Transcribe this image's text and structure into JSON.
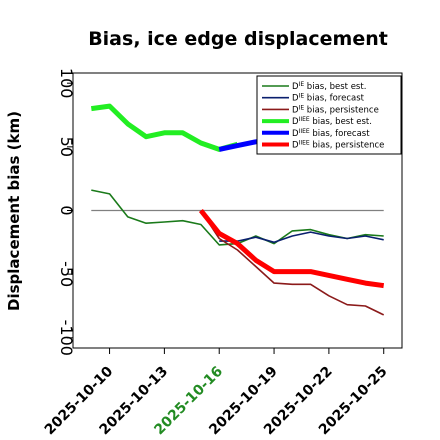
{
  "chart_data": {
    "type": "line",
    "title": "Bias, ice edge displacement",
    "xlabel": "",
    "ylabel": "Displacement bias (km)",
    "x_start": "2025-10-09",
    "x_end": "2025-10-25",
    "xlim": [
      "2025-10-08",
      "2025-10-26"
    ],
    "ylim": [
      -108,
      108
    ],
    "y_ticks": [
      100,
      50,
      0,
      -50,
      -100
    ],
    "y_tick_labels": [
      "100",
      "50",
      "0",
      "-50",
      "-100"
    ],
    "x_ticks": [
      "2025-10-10",
      "2025-10-13",
      "2025-10-16",
      "2025-10-19",
      "2025-10-22",
      "2025-10-25"
    ],
    "x_tick_colors": [
      "#000000",
      "#000000",
      "#228b22",
      "#000000",
      "#000000",
      "#000000"
    ],
    "reference_line": 0,
    "reference_color": "#808080",
    "grid": false,
    "legend_position": "top-right",
    "series": [
      {
        "name": "D bias, best est.",
        "legend_super": "IE",
        "legend_rest": " bias, best est.",
        "color": "#1a7a1a",
        "width": 1.6,
        "x": [
          "2025-10-09",
          "2025-10-10",
          "2025-10-11",
          "2025-10-12",
          "2025-10-13",
          "2025-10-14",
          "2025-10-15",
          "2025-10-16",
          "2025-10-17",
          "2025-10-18",
          "2025-10-19",
          "2025-10-20",
          "2025-10-21",
          "2025-10-22",
          "2025-10-23",
          "2025-10-24",
          "2025-10-25"
        ],
        "y": [
          16,
          13,
          -5,
          -10,
          -9,
          -8,
          -11,
          -27,
          -26,
          -20,
          -26,
          -16,
          -15,
          -19,
          -22,
          -19,
          -20
        ]
      },
      {
        "name": "D bias, forecast",
        "legend_super": "IE",
        "legend_rest": " bias, forecast",
        "color": "#0a1f6e",
        "width": 1.6,
        "x": [
          "2025-10-16",
          "2025-10-17",
          "2025-10-18",
          "2025-10-19",
          "2025-10-20",
          "2025-10-21",
          "2025-10-22",
          "2025-10-23",
          "2025-10-24",
          "2025-10-25"
        ],
        "y": [
          -24,
          -24,
          -21,
          -25,
          -20,
          -17,
          -20,
          -22,
          -20,
          -23
        ]
      },
      {
        "name": "D bias, persistence",
        "legend_super": "IE",
        "legend_rest": " bias, persistence",
        "color": "#8b1a1a",
        "width": 1.6,
        "x": [
          "2025-10-15",
          "2025-10-16",
          "2025-10-17",
          "2025-10-18",
          "2025-10-19",
          "2025-10-20",
          "2025-10-21",
          "2025-10-22",
          "2025-10-23",
          "2025-10-24",
          "2025-10-25"
        ],
        "y": [
          0,
          -22,
          -31,
          -44,
          -57,
          -58,
          -58,
          -67,
          -74,
          -75,
          -82
        ]
      },
      {
        "name": "D bias, best est.",
        "legend_super": "IIEE",
        "legend_rest": " bias, best est.",
        "color": "#22ee22",
        "width": 5,
        "x": [
          "2025-10-09",
          "2025-10-10",
          "2025-10-11",
          "2025-10-12",
          "2025-10-13",
          "2025-10-14",
          "2025-10-15",
          "2025-10-16",
          "2025-10-17"
        ],
        "y": [
          80,
          82,
          68,
          58,
          61,
          61,
          53,
          48,
          52
        ]
      },
      {
        "name": "D bias, forecast",
        "legend_super": "IIEE",
        "legend_rest": " bias, forecast",
        "color": "#0000ff",
        "width": 5,
        "x": [
          "2025-10-16",
          "2025-10-17",
          "2025-10-18",
          "2025-10-19"
        ],
        "y": [
          48,
          51,
          54,
          56
        ]
      },
      {
        "name": "D bias, persistence",
        "legend_super": "IIEE",
        "legend_rest": " bias, persistence",
        "color": "#ff0000",
        "width": 5,
        "x": [
          "2025-10-15",
          "2025-10-16",
          "2025-10-17",
          "2025-10-18",
          "2025-10-19",
          "2025-10-20",
          "2025-10-21",
          "2025-10-22",
          "2025-10-23",
          "2025-10-24",
          "2025-10-25"
        ],
        "y": [
          0,
          -18,
          -26,
          -39,
          -48,
          -48,
          -48,
          -51,
          -54,
          -57,
          -59
        ]
      }
    ]
  }
}
